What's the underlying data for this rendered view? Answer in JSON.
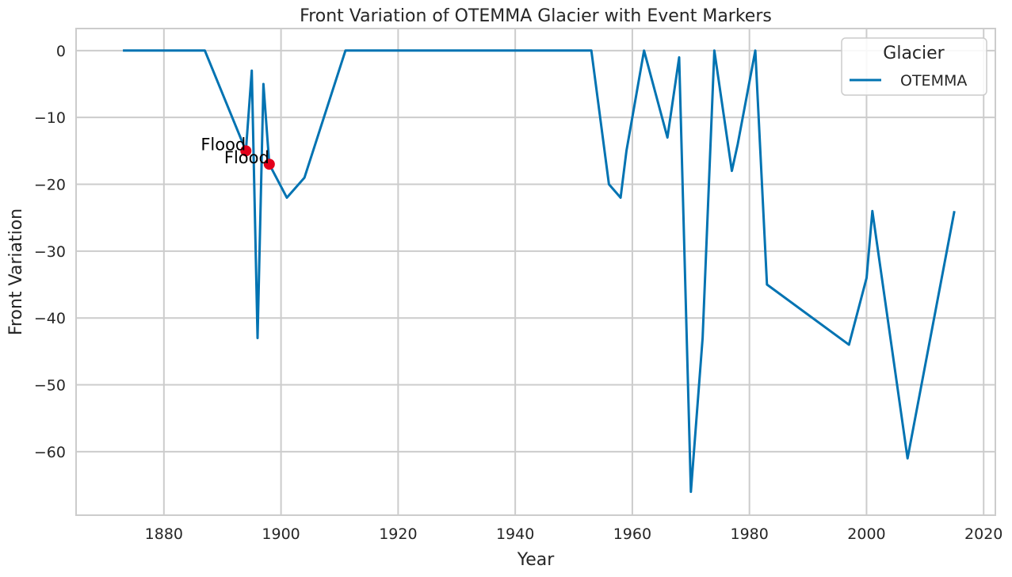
{
  "chart_data": {
    "type": "line",
    "title": "Front Variation of OTEMMA Glacier with Event Markers",
    "xlabel": "Year",
    "ylabel": "Front Variation",
    "xlim": [
      1865,
      2022
    ],
    "ylim": [
      -69.5,
      3.3
    ],
    "x_ticks": [
      1880,
      1900,
      1920,
      1940,
      1960,
      1980,
      2000,
      2020
    ],
    "y_ticks": [
      0,
      -10,
      -20,
      -30,
      -40,
      -50,
      -60
    ],
    "grid": true,
    "legend": {
      "title": "Glacier",
      "placement": "top-right",
      "entries": [
        "OTEMMA"
      ]
    },
    "series": [
      {
        "name": "OTEMMA",
        "color": "#0173b2",
        "x": [
          1873,
          1887,
          1894,
          1895,
          1896,
          1897,
          1898,
          1901,
          1904,
          1911,
          1953,
          1956,
          1958,
          1959,
          1962,
          1966,
          1968,
          1970,
          1972,
          1974,
          1977,
          1978,
          1981,
          1983,
          1997,
          2000,
          2001,
          2007,
          2015
        ],
        "y": [
          0,
          0,
          -15,
          -3,
          -43,
          -5,
          -17,
          -22,
          -19,
          0,
          0,
          -20,
          -22,
          -15,
          0,
          -13,
          -1,
          -66,
          -43,
          0,
          -18,
          -14,
          0,
          -35,
          -44,
          -34,
          -24,
          -61,
          -24
        ]
      }
    ],
    "events": [
      {
        "x": 1894,
        "y": -15,
        "label": "Flood",
        "color": "#e3001b"
      },
      {
        "x": 1898,
        "y": -17,
        "label": "Flood",
        "color": "#e3001b"
      }
    ],
    "colors": {
      "axis": "#cccccc",
      "grid": "#cccccc",
      "text": "#262626"
    }
  }
}
